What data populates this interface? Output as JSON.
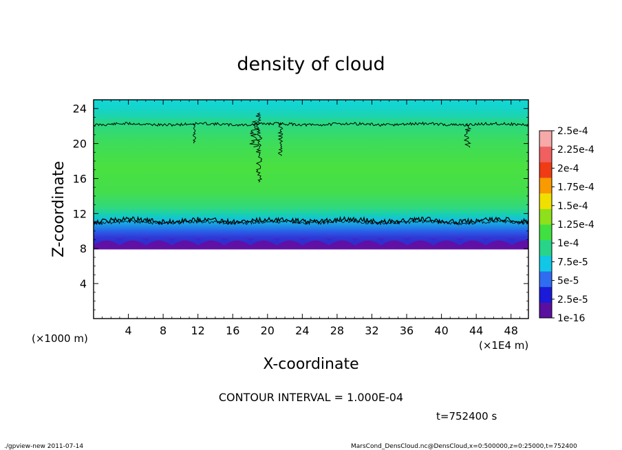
{
  "chart_data": {
    "type": "heatmap",
    "title": "density of cloud",
    "xlabel": "X-coordinate",
    "ylabel": "Z-coordinate",
    "x_unit": "(×1E4 m)",
    "y_unit": "(×1000 m)",
    "xlim": [
      0,
      50
    ],
    "ylim": [
      0,
      25
    ],
    "x_ticks": [
      "4",
      "8",
      "12",
      "16",
      "20",
      "24",
      "28",
      "32",
      "36",
      "40",
      "44",
      "48"
    ],
    "y_ticks": [
      "4",
      "8",
      "12",
      "16",
      "20",
      "24"
    ],
    "colorbar": {
      "labels": [
        "1e-16",
        "2.5e-5",
        "5e-5",
        "7.5e-5",
        "1e-4",
        "1.25e-4",
        "1.5e-4",
        "1.75e-4",
        "2e-4",
        "2.25e-4",
        "2.5e-4"
      ],
      "colors": [
        "#5a0fa0",
        "#1a1ad8",
        "#2f6cf0",
        "#10c8e6",
        "#28d48a",
        "#40e040",
        "#8ee01a",
        "#f0e000",
        "#f89a00",
        "#f03c14",
        "#f06060",
        "#f7a8a8"
      ]
    },
    "profile_z": [
      7.8,
      8.0,
      9.0,
      10.0,
      11.0,
      12.0,
      14.0,
      16.0,
      18.0,
      20.0,
      22.0,
      23.0,
      25.0
    ],
    "profile_value": [
      0,
      2e-05,
      4.5e-05,
      7e-05,
      8.5e-05,
      0.000105,
      0.00012,
      0.000122,
      0.000115,
      0.00011,
      0.0001,
      8e-05,
      7e-05
    ],
    "contour_levels": [
      0.0001
    ],
    "contour_interval": "CONTOUR INTERVAL = 1.000E-04",
    "time_label": "t=752400 s"
  },
  "footer": {
    "left": "./gpview-new  2011-07-14",
    "right": "MarsCond_DensCloud.nc@DensCloud,x=0:500000,z=0:25000,t=752400"
  }
}
